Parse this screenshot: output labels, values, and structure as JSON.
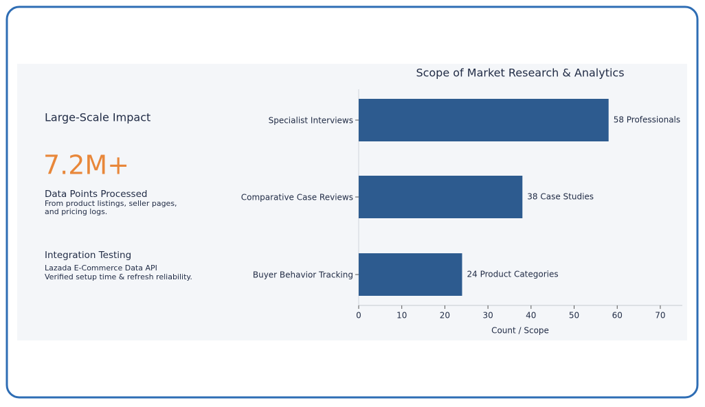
{
  "panel": {
    "heading": "Large-Scale Impact",
    "stat": "7.2M+",
    "stat_label": "Data Points Processed",
    "stat_note": [
      "From product listings, seller pages,",
      "and pricing logs."
    ],
    "section_title": "Integration Testing",
    "section_lines": [
      "Lazada E-Commerce Data API",
      "Verified setup time & refresh reliability."
    ]
  },
  "chart_data": {
    "type": "hbar",
    "title": "Scope of Market Research & Analytics",
    "x_label": "Count / Scope",
    "categories": [
      "Specialist Interviews",
      "Comparative Case Reviews",
      "Buyer Behavior Tracking"
    ],
    "values": [
      58,
      38,
      24
    ],
    "value_labels": [
      "58 Professionals",
      "38 Case Studies",
      "24 Product Categories"
    ],
    "color": "#2d5b8f",
    "xlim": [
      0,
      75
    ],
    "xticks": [
      0,
      10,
      20,
      30,
      40,
      50,
      60,
      70
    ]
  }
}
